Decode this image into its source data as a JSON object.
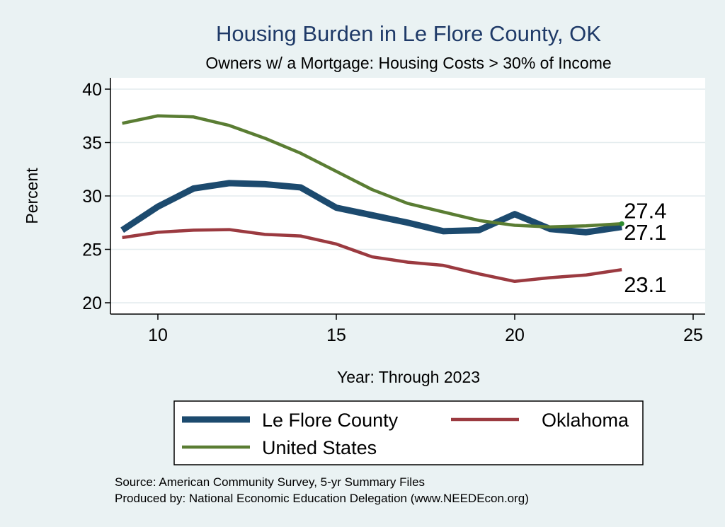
{
  "chart_data": {
    "type": "line",
    "title": "Housing Burden in Le Flore County, OK",
    "subtitle": "Owners w/ a Mortgage: Housing Costs > 30% of Income",
    "xlabel": "Year: Through 2023",
    "ylabel": "Percent",
    "xlim": [
      9,
      25
    ],
    "ylim": [
      20,
      40
    ],
    "xticks": [
      10,
      15,
      20,
      25
    ],
    "yticks": [
      20,
      25,
      30,
      35,
      40
    ],
    "grid": true,
    "legend_position": "bottom",
    "x": [
      9,
      10,
      11,
      12,
      13,
      14,
      15,
      16,
      17,
      18,
      19,
      20,
      21,
      22,
      23
    ],
    "series": [
      {
        "name": "Le Flore County",
        "color": "#1c4a6e",
        "values": [
          26.8,
          29.0,
          30.7,
          31.2,
          31.1,
          30.8,
          28.9,
          28.2,
          27.5,
          26.7,
          26.8,
          28.3,
          26.9,
          26.6,
          27.1
        ],
        "end_label": "27.1"
      },
      {
        "name": "Oklahoma",
        "color": "#9b3a40",
        "values": [
          26.1,
          26.6,
          26.8,
          26.85,
          26.4,
          26.25,
          25.5,
          24.3,
          23.8,
          23.5,
          22.7,
          22.0,
          22.35,
          22.6,
          23.1
        ],
        "end_label": "23.1"
      },
      {
        "name": "United States",
        "color": "#5a7d33",
        "values": [
          36.8,
          37.5,
          37.4,
          36.6,
          35.4,
          34.0,
          32.3,
          30.6,
          29.3,
          28.5,
          27.7,
          27.25,
          27.1,
          27.2,
          27.4
        ],
        "end_label": "27.4"
      }
    ]
  },
  "footer": {
    "source": "Source: American Community Survey, 5-yr Summary Files",
    "produced": "Produced by: National Economic Education Delegation (www.NEEDEcon.org)"
  }
}
